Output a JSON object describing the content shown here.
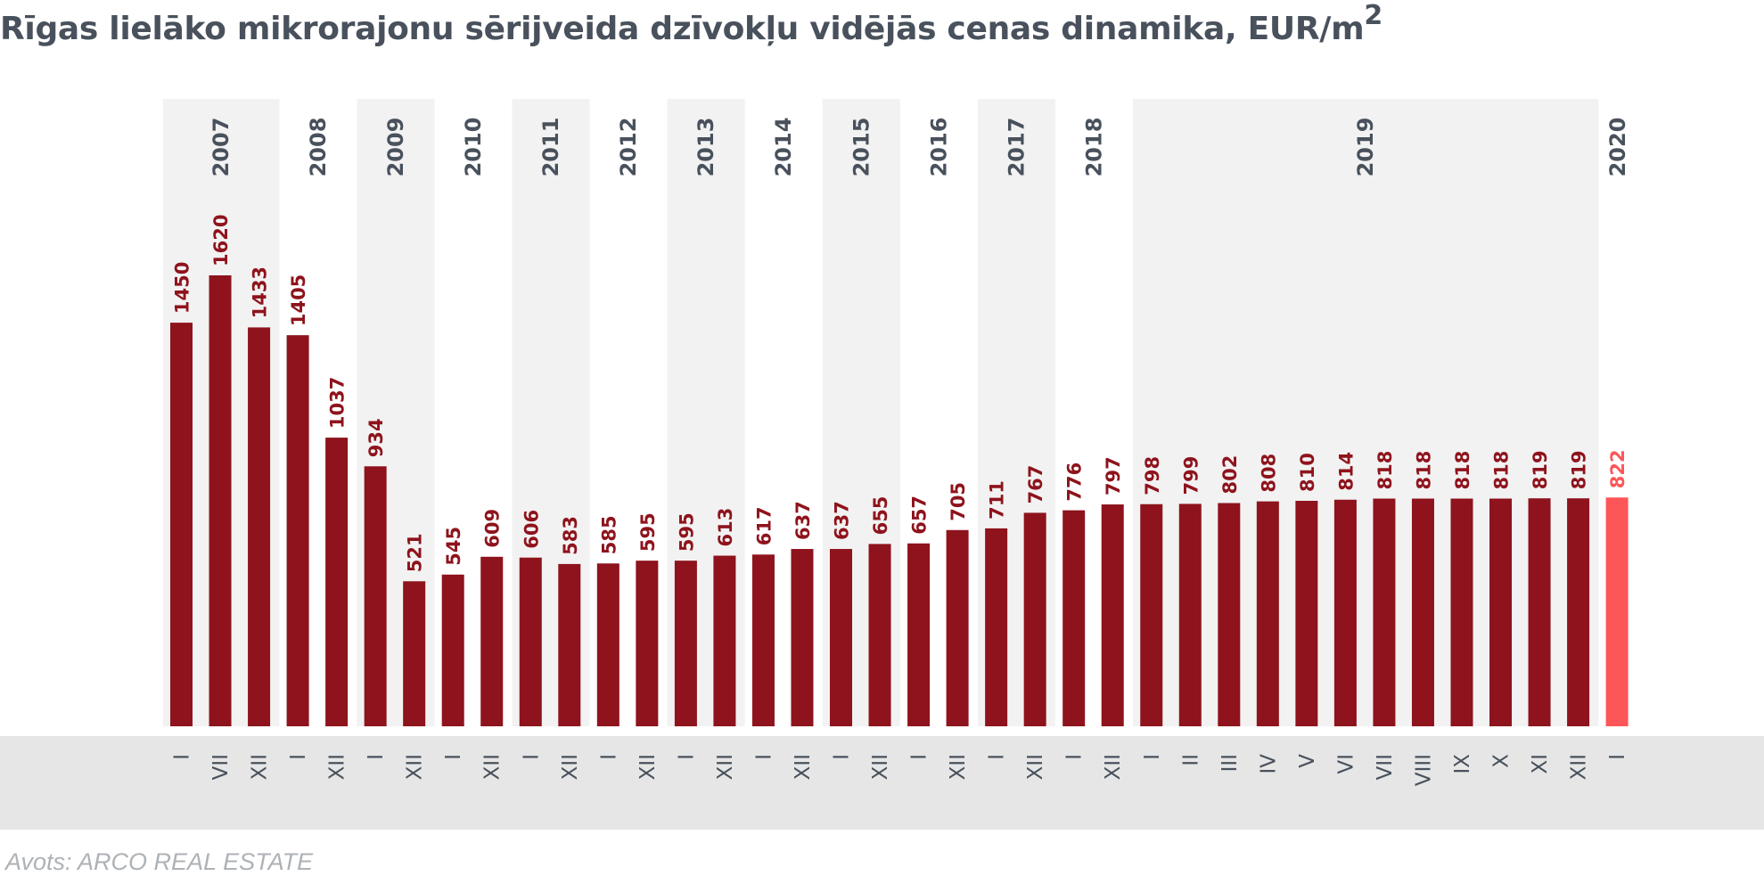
{
  "title": "Rīgas lielāko mikrorajonu sērijveida dzīvokļu vidējās cenas dinamika, EUR/m",
  "title_sup": "2",
  "source": "Avots: ARCO REAL ESTATE",
  "colors": {
    "bar": "#8e131c",
    "bar_highlight": "#fd5658",
    "band": "#f2f2f2",
    "axis_band": "#e6e6e6",
    "year_text": "#48515c",
    "month_text": "#48515c"
  },
  "chart_data": {
    "type": "bar",
    "title": "Rīgas lielāko mikrorajonu sērijveida dzīvokļu vidējās cenas dinamika, EUR/m2",
    "xlabel": "",
    "ylabel": "",
    "grid": false,
    "legend": "none",
    "ylim": [
      0,
      1620
    ],
    "categories": [
      "I",
      "VII",
      "XII",
      "I",
      "XII",
      "I",
      "XII",
      "I",
      "XII",
      "I",
      "XII",
      "I",
      "XII",
      "I",
      "XII",
      "I",
      "XII",
      "I",
      "XII",
      "I",
      "XII",
      "I",
      "XII",
      "I",
      "XII",
      "I",
      "II",
      "III",
      "IV",
      "V",
      "VI",
      "VII",
      "VIII",
      "IX",
      "X",
      "XI",
      "XII",
      "I"
    ],
    "years": [
      "2007",
      "2007",
      "2007",
      "2008",
      "2008",
      "2009",
      "2009",
      "2010",
      "2010",
      "2011",
      "2011",
      "2012",
      "2012",
      "2013",
      "2013",
      "2014",
      "2014",
      "2015",
      "2015",
      "2016",
      "2016",
      "2017",
      "2017",
      "2018",
      "2018",
      "2019",
      "2019",
      "2019",
      "2019",
      "2019",
      "2019",
      "2019",
      "2019",
      "2019",
      "2019",
      "2019",
      "2019",
      "2020"
    ],
    "year_labels": [
      "2007",
      "2008",
      "2009",
      "2010",
      "2011",
      "2012",
      "2013",
      "2014",
      "2015",
      "2016",
      "2017",
      "2018",
      "2019",
      "2020"
    ],
    "values": [
      1450,
      1620,
      1433,
      1405,
      1037,
      934,
      521,
      545,
      609,
      606,
      583,
      585,
      595,
      595,
      613,
      617,
      637,
      637,
      655,
      657,
      705,
      711,
      767,
      776,
      797,
      798,
      799,
      802,
      808,
      810,
      814,
      818,
      818,
      818,
      818,
      819,
      819,
      822
    ],
    "highlight_index": 37
  }
}
